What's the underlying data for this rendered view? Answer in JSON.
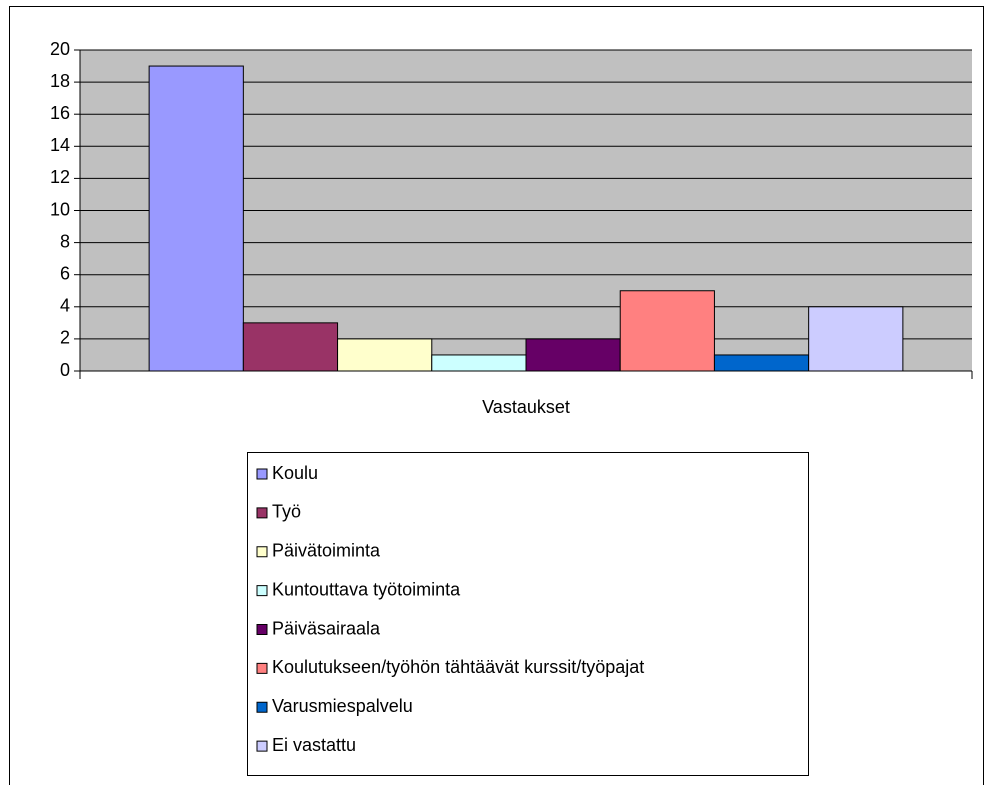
{
  "chart_data": {
    "type": "bar",
    "categories": [
      "Vastaukset"
    ],
    "series": [
      {
        "name": "Koulu",
        "color": "#9999ff",
        "values": [
          19
        ]
      },
      {
        "name": "Työ",
        "color": "#993366",
        "values": [
          3
        ]
      },
      {
        "name": "Päivätoiminta",
        "color": "#ffffcc",
        "values": [
          2
        ]
      },
      {
        "name": "Kuntouttava työtoiminta",
        "color": "#ccffff",
        "values": [
          1
        ]
      },
      {
        "name": "Päiväsairaala",
        "color": "#660066",
        "values": [
          2
        ]
      },
      {
        "name": "Koulutukseen/työhön tähtäävät kurssit/työpajat",
        "color": "#ff8080",
        "values": [
          5
        ]
      },
      {
        "name": "Varusmiespalvelu",
        "color": "#0066cc",
        "values": [
          1
        ]
      },
      {
        "name": "Ei vastattu",
        "color": "#ccccff",
        "values": [
          4
        ]
      }
    ],
    "ylim": [
      0,
      20
    ],
    "yticks": [
      0,
      2,
      4,
      6,
      8,
      10,
      12,
      14,
      16,
      18,
      20
    ],
    "grid": true,
    "plot_background": "#c0c0c0",
    "legend": "bottom"
  }
}
